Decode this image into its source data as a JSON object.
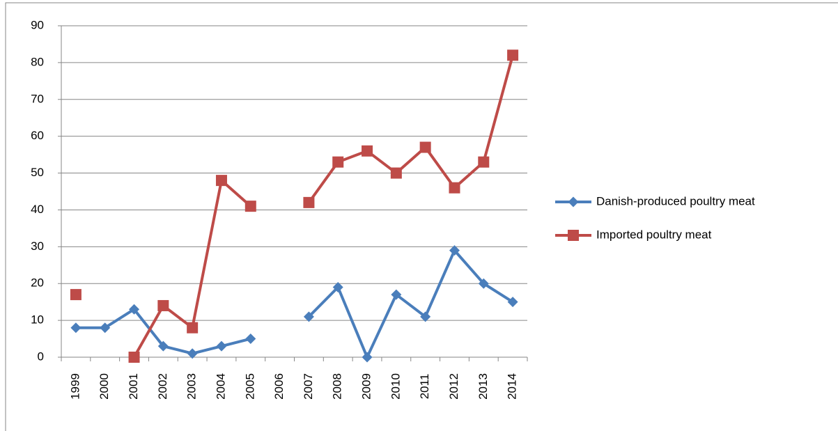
{
  "chart_data": {
    "type": "line",
    "categories": [
      "1999",
      "2000",
      "2001",
      "2002",
      "2003",
      "2004",
      "2005",
      "2006",
      "2007",
      "2008",
      "2009",
      "2010",
      "2011",
      "2012",
      "2013",
      "2014"
    ],
    "series": [
      {
        "name": "Danish-produced poultry meat",
        "color": "#4a7ebb",
        "marker": "diamond",
        "values": [
          8,
          8,
          13,
          3,
          1,
          3,
          5,
          null,
          11,
          19,
          0,
          17,
          11,
          29,
          20,
          15
        ]
      },
      {
        "name": "Imported poultry meat",
        "color": "#be4b48",
        "marker": "square",
        "values": [
          17,
          null,
          0,
          14,
          8,
          48,
          41,
          null,
          42,
          53,
          56,
          50,
          57,
          46,
          53,
          82
        ]
      }
    ],
    "ylim": [
      0,
      90
    ],
    "yticks": [
      0,
      10,
      20,
      30,
      40,
      50,
      60,
      70,
      80,
      90
    ],
    "grid": true,
    "legend": "right"
  }
}
